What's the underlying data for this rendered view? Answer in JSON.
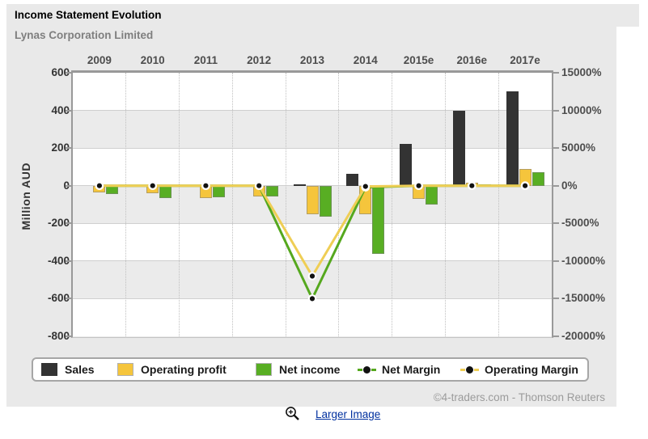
{
  "header": {
    "title": "Income Statement Evolution"
  },
  "chart": {
    "subtitle": "Lynas Corporation Limited",
    "y_axis_title": "Million AUD",
    "credit": "©4-traders.com - Thomson Reuters"
  },
  "chart_data": {
    "type": "bar+line combo",
    "title": "Income Statement Evolution",
    "subtitle": "Lynas Corporation Limited",
    "categories": [
      "2009",
      "2010",
      "2011",
      "2012",
      "2013",
      "2014",
      "2015e",
      "2016e",
      "2017e"
    ],
    "series": [
      {
        "name": "Sales",
        "type": "bar",
        "axis": "left",
        "color": "#333333",
        "values": [
          0,
          0,
          0,
          0,
          8,
          65,
          220,
          400,
          500
        ]
      },
      {
        "name": "Operating profit",
        "type": "bar",
        "axis": "left",
        "color": "#F5C53C",
        "values": [
          -35,
          -40,
          -65,
          -55,
          -150,
          -150,
          -70,
          18,
          90
        ]
      },
      {
        "name": "Net income",
        "type": "bar",
        "axis": "left",
        "color": "#58AE23",
        "values": [
          -45,
          -65,
          -60,
          -55,
          -165,
          -360,
          -100,
          5,
          72
        ]
      },
      {
        "name": "Net Margin",
        "type": "line",
        "axis": "right",
        "color": "#55A81E",
        "values": [
          0,
          0,
          0,
          0,
          -15000,
          -200,
          0,
          0,
          0
        ]
      },
      {
        "name": "Operating Margin",
        "type": "line",
        "axis": "right",
        "color": "#EFCE55",
        "values": [
          0,
          0,
          0,
          0,
          -12000,
          -100,
          0,
          0,
          0
        ]
      }
    ],
    "left_axis": {
      "label": "Million AUD",
      "min": -800,
      "max": 600,
      "step": 200,
      "ticks": [
        "600",
        "400",
        "200",
        "0",
        "-200",
        "-400",
        "-600",
        "-800"
      ]
    },
    "right_axis": {
      "label": "%",
      "min": -20000,
      "max": 15000,
      "step": 5000,
      "ticks": [
        "15000%",
        "10000%",
        "5000%",
        "0%",
        "-5000%",
        "-10000%",
        "-15000%",
        "-20000%"
      ]
    },
    "grid": {
      "horizontal": "solid",
      "vertical": "dotted",
      "bands": "alternating white / light-gray"
    },
    "legend_position": "bottom",
    "dot_style": {
      "fill": "#111111",
      "ring": "#FFFFFF"
    }
  },
  "footer": {
    "link_label": "Larger Image",
    "zoom_icon": "magnifier-plus"
  }
}
